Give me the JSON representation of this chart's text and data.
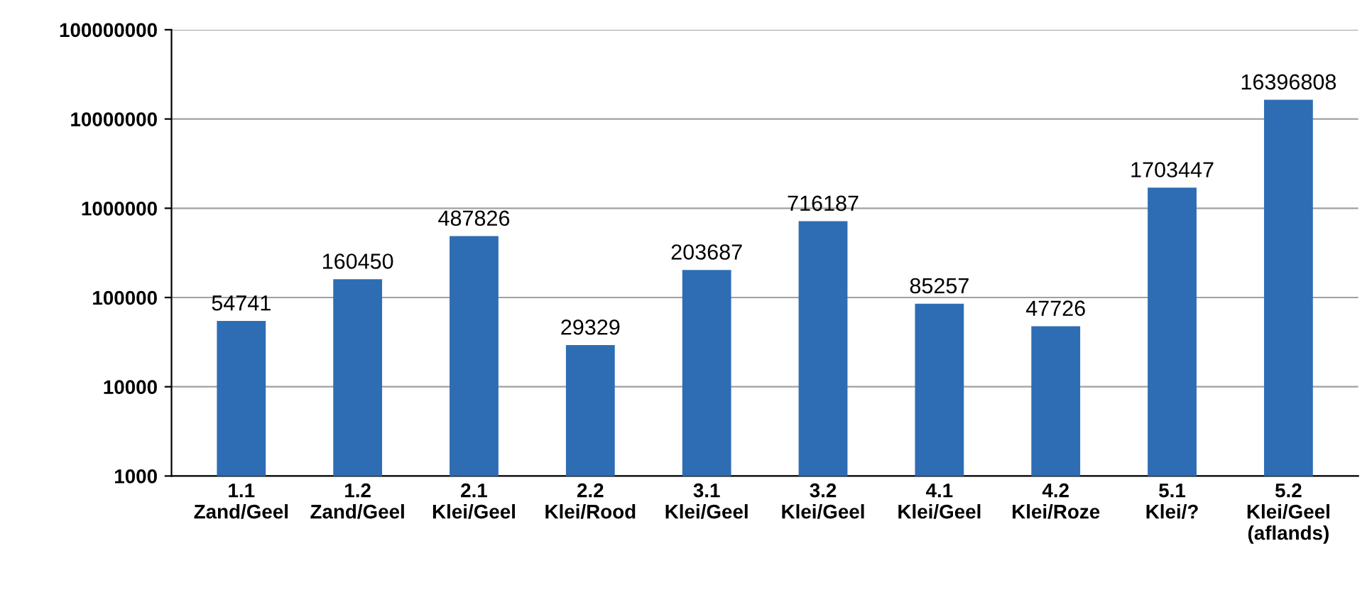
{
  "chart_data": {
    "type": "bar",
    "categories": [
      "1.1\nZand/Geel",
      "1.2\nZand/Geel",
      "2.1\nKlei/Geel",
      "2.2\nKlei/Rood",
      "3.1\nKlei/Geel",
      "3.2\nKlei/Geel",
      "4.1\nKlei/Geel",
      "4.2\nKlei/Roze",
      "5.1\nKlei/?",
      "5.2\nKlei/Geel\n(aflands)"
    ],
    "values": [
      54741,
      160450,
      487826,
      29329,
      203687,
      716187,
      85257,
      47726,
      1703447,
      16396808
    ],
    "color": "#2e6db4",
    "log": "y",
    "ylim": [
      1000,
      100000000
    ],
    "yticks": [
      1000,
      10000,
      100000,
      1000000,
      10000000,
      100000000
    ],
    "grid": "y",
    "data_labels": true
  }
}
